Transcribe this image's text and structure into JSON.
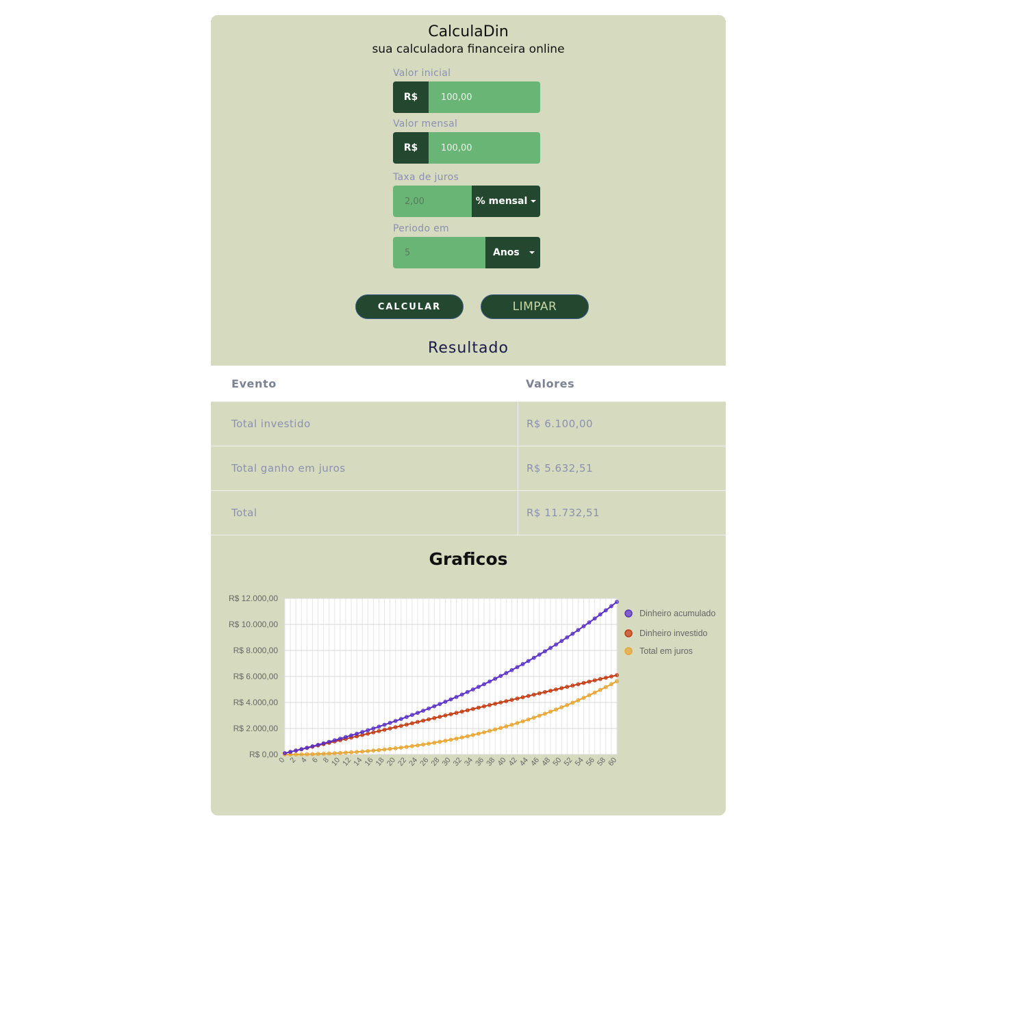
{
  "header": {
    "title": "CalculaDin",
    "subtitle": "sua calculadora financeira online"
  },
  "form": {
    "valor_inicial": {
      "label": "Valor inicial",
      "prefix": "R$",
      "value": "100,00"
    },
    "valor_mensal": {
      "label": "Valor mensal",
      "prefix": "R$",
      "value": "100,00"
    },
    "taxa": {
      "label": "Taxa de juros",
      "value": "2,00",
      "unit": "% mensal"
    },
    "periodo": {
      "label": "Periodo em",
      "value": "5",
      "unit": "Anos"
    },
    "calcular_label": "CALCULAR",
    "limpar_label": "LIMPAR"
  },
  "result": {
    "title": "Resultado",
    "headers": [
      "Evento",
      "Valores"
    ],
    "rows": [
      {
        "event": "Total investido",
        "value": "R$ 6.100,00"
      },
      {
        "event": "Total ganho em juros",
        "value": "R$ 5.632,51"
      },
      {
        "event": "Total",
        "value": "R$ 11.732,51"
      }
    ]
  },
  "charts": {
    "title": "Graficos"
  },
  "chart_data": {
    "type": "line",
    "ylim": [
      0,
      12000
    ],
    "y_ticks": [
      "R$ 12.000,00",
      "R$ 10.000,00",
      "R$ 8.000,00",
      "R$ 6.000,00",
      "R$ 4.000,00",
      "R$ 2.000,00",
      "R$ 0,00"
    ],
    "x_ticks": [
      "0",
      "2",
      "4",
      "6",
      "8",
      "10",
      "12",
      "14",
      "16",
      "18",
      "20",
      "22",
      "24",
      "26",
      "28",
      "30",
      "32",
      "34",
      "36",
      "38",
      "40",
      "42",
      "44",
      "46",
      "48",
      "50",
      "52",
      "54",
      "56",
      "58",
      "60"
    ],
    "legend_position": "right",
    "grid": true,
    "months": 60,
    "initial": 100,
    "monthly": 100,
    "rate": 0.02,
    "series": [
      {
        "name": "Dinheiro acumulado",
        "color": "#5a2fc8",
        "key": "total"
      },
      {
        "name": "Dinheiro investido",
        "color": "#c23a10",
        "key": "invested"
      },
      {
        "name": "Total em juros",
        "color": "#e8a530",
        "key": "interest"
      }
    ]
  }
}
